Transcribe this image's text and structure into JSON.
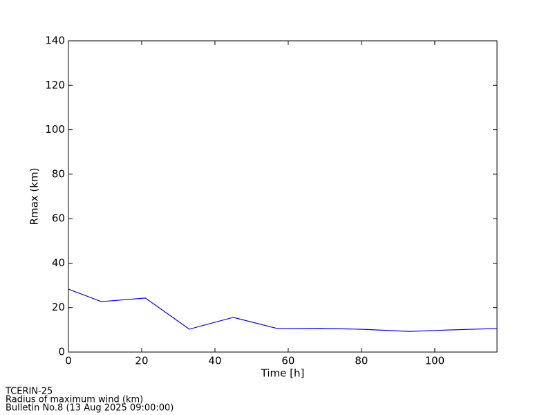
{
  "chart_data": {
    "type": "line",
    "x": [
      0,
      9,
      21,
      33,
      45,
      57,
      69,
      81,
      93,
      105,
      117
    ],
    "values": [
      28.3,
      22.7,
      24.3,
      10.3,
      15.6,
      10.6,
      10.7,
      10.2,
      9.3,
      10.0,
      10.6
    ],
    "color": "#0000ff",
    "xlabel": "Time [h]",
    "ylabel": "Rmax (km)",
    "xlim": [
      0,
      117
    ],
    "ylim": [
      0,
      140
    ],
    "xticks": [
      0,
      20,
      40,
      60,
      80,
      100
    ],
    "yticks": [
      0,
      20,
      40,
      60,
      80,
      100,
      120,
      140
    ]
  },
  "footer": [
    "TCERIN-25",
    "Radius of maximum wind (km)",
    "Bulletin No.8 (13 Aug 2025  09:00:00)"
  ]
}
